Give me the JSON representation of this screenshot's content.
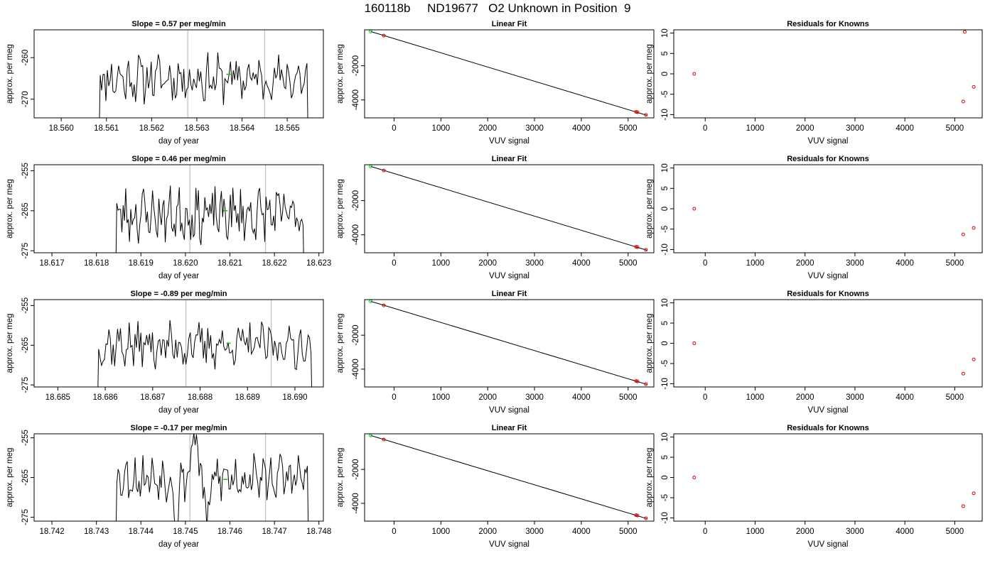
{
  "title": "160118b     ND19677   O2 Unknown in Position  9",
  "colors": {
    "line": "#000000",
    "green": "#00cc00",
    "red": "#d40000",
    "gridline": "#bfbfbf",
    "fit_line": "#000000"
  },
  "chart_data": [
    {
      "type": "line",
      "title": "Slope =  0.57  per meg/min",
      "xlabel": "day of year",
      "ylabel": "approx. per meg",
      "xlim": [
        18.5594,
        18.5658
      ],
      "ylim": [
        -274.5,
        -253.3
      ],
      "xticks": [
        18.56,
        18.561,
        18.562,
        18.563,
        18.564,
        18.565
      ],
      "xtick_labels": [
        "18.560",
        "18.561",
        "18.562",
        "18.563",
        "18.564",
        "18.565"
      ],
      "yticks": [
        -260,
        -270
      ],
      "ytick_labels": [
        "-260",
        "-270"
      ],
      "vlines": [
        18.5628,
        18.5645
      ],
      "marker": {
        "x": 18.5637,
        "y": -264
      },
      "series_meta": {
        "start": 18.5608,
        "end": 18.5655,
        "seed": 11,
        "base": -265,
        "amp": 4.5,
        "bumps": []
      }
    },
    {
      "type": "scatter",
      "title": "Linear Fit",
      "xlabel": "VUV signal",
      "ylabel": "approx. per meg",
      "xlim": [
        -630,
        5550
      ],
      "ylim": [
        -5050,
        100
      ],
      "xticks": [
        0,
        1000,
        2000,
        3000,
        4000,
        5000
      ],
      "xtick_labels": [
        "0",
        "1000",
        "2000",
        "3000",
        "4000",
        "5000"
      ],
      "yticks": [
        -2000,
        -4000
      ],
      "ytick_labels": [
        "-2000",
        "-4000"
      ],
      "line": {
        "x0": -500,
        "y0": 0,
        "x1": 5400,
        "y1": -4900
      },
      "green_points": [
        {
          "x": -500,
          "y": 0
        }
      ],
      "red_points": [
        {
          "x": -220,
          "y": -240
        },
        {
          "x": 5170,
          "y": -4700
        },
        {
          "x": 5200,
          "y": -4720
        },
        {
          "x": 5380,
          "y": -4880
        }
      ]
    },
    {
      "type": "scatter",
      "title": "Residuals for Knowns",
      "xlabel": "VUV signal",
      "ylabel": "approx. per meg",
      "xlim": [
        -630,
        5550
      ],
      "ylim": [
        -10.8,
        10.8
      ],
      "xticks": [
        0,
        1000,
        2000,
        3000,
        4000,
        5000
      ],
      "xtick_labels": [
        "0",
        "1000",
        "2000",
        "3000",
        "4000",
        "5000"
      ],
      "yticks": [
        10,
        5,
        0,
        -5,
        -10
      ],
      "ytick_labels": [
        "10",
        "5",
        "0",
        "-5",
        "-10"
      ],
      "red_points": [
        {
          "x": -220,
          "y": 0
        },
        {
          "x": 5170,
          "y": -6.8
        },
        {
          "x": 5200,
          "y": 10.3
        },
        {
          "x": 5380,
          "y": -3.2
        }
      ]
    },
    {
      "type": "line",
      "title": "Slope =  0.46  per meg/min",
      "xlabel": "day of year",
      "ylabel": "approx. per meg",
      "xlim": [
        18.6166,
        18.6231
      ],
      "ylim": [
        -275.5,
        -253.5
      ],
      "xticks": [
        18.617,
        18.618,
        18.619,
        18.62,
        18.621,
        18.622,
        18.623
      ],
      "xtick_labels": [
        "18.617",
        "18.618",
        "18.619",
        "18.620",
        "18.621",
        "18.622",
        "18.623"
      ],
      "yticks": [
        -255,
        -265,
        -275
      ],
      "ytick_labels": [
        "-255",
        "-265",
        "-275"
      ],
      "vlines": [
        18.6201,
        18.6218
      ],
      "marker": {
        "x": 18.6209,
        "y": -265
      },
      "series_meta": {
        "start": 18.6184,
        "end": 18.6227,
        "seed": 23,
        "base": -266,
        "amp": 5.5,
        "bumps": []
      }
    },
    {
      "type": "scatter",
      "title": "Linear Fit",
      "xlabel": "VUV signal",
      "ylabel": "approx. per meg",
      "xlim": [
        -630,
        5550
      ],
      "ylim": [
        -5050,
        100
      ],
      "xticks": [
        0,
        1000,
        2000,
        3000,
        4000,
        5000
      ],
      "xtick_labels": [
        "0",
        "1000",
        "2000",
        "3000",
        "4000",
        "5000"
      ],
      "yticks": [
        -2000,
        -4000
      ],
      "ytick_labels": [
        "-2000",
        "-4000"
      ],
      "line": {
        "x0": -500,
        "y0": 0,
        "x1": 5400,
        "y1": -4900
      },
      "green_points": [
        {
          "x": -500,
          "y": 0
        }
      ],
      "red_points": [
        {
          "x": -220,
          "y": -240
        },
        {
          "x": 5170,
          "y": -4700
        },
        {
          "x": 5200,
          "y": -4720
        },
        {
          "x": 5380,
          "y": -4880
        }
      ]
    },
    {
      "type": "scatter",
      "title": "Residuals for Knowns",
      "xlabel": "VUV signal",
      "ylabel": "approx. per meg",
      "xlim": [
        -630,
        5550
      ],
      "ylim": [
        -10.8,
        10.8
      ],
      "xticks": [
        0,
        1000,
        2000,
        3000,
        4000,
        5000
      ],
      "xtick_labels": [
        "0",
        "1000",
        "2000",
        "3000",
        "4000",
        "5000"
      ],
      "yticks": [
        10,
        5,
        0,
        -5,
        -10
      ],
      "ytick_labels": [
        "10",
        "5",
        "0",
        "-5",
        "-10"
      ],
      "red_points": [
        {
          "x": -220,
          "y": 0
        },
        {
          "x": 5170,
          "y": -6.3
        },
        {
          "x": 5380,
          "y": -4.7
        }
      ]
    },
    {
      "type": "line",
      "title": "Slope =  -0.89  per meg/min",
      "xlabel": "day of year",
      "ylabel": "approx. per meg",
      "xlim": [
        18.6845,
        18.6906
      ],
      "ylim": [
        -275.5,
        -253.5
      ],
      "xticks": [
        18.685,
        18.686,
        18.687,
        18.688,
        18.689,
        18.69
      ],
      "xtick_labels": [
        "18.685",
        "18.686",
        "18.687",
        "18.688",
        "18.689",
        "18.690"
      ],
      "yticks": [
        -255,
        -265,
        -275
      ],
      "ytick_labels": [
        "-255",
        "-265",
        "-275"
      ],
      "vlines": [
        18.6877,
        18.6895
      ],
      "marker": {
        "x": 18.6886,
        "y": -264.5
      },
      "series_meta": {
        "start": 18.6858,
        "end": 18.6904,
        "seed": 37,
        "base": -265,
        "amp": 4.5,
        "bumps": []
      }
    },
    {
      "type": "scatter",
      "title": "Linear Fit",
      "xlabel": "VUV signal",
      "ylabel": "approx. per meg",
      "xlim": [
        -630,
        5550
      ],
      "ylim": [
        -5050,
        100
      ],
      "xticks": [
        0,
        1000,
        2000,
        3000,
        4000,
        5000
      ],
      "xtick_labels": [
        "0",
        "1000",
        "2000",
        "3000",
        "4000",
        "5000"
      ],
      "yticks": [
        -2000,
        -4000
      ],
      "ytick_labels": [
        "-2000",
        "-4000"
      ],
      "line": {
        "x0": -500,
        "y0": 0,
        "x1": 5400,
        "y1": -4900
      },
      "green_points": [
        {
          "x": -500,
          "y": 0
        }
      ],
      "red_points": [
        {
          "x": -220,
          "y": -240
        },
        {
          "x": 5170,
          "y": -4700
        },
        {
          "x": 5200,
          "y": -4720
        },
        {
          "x": 5380,
          "y": -4880
        }
      ]
    },
    {
      "type": "scatter",
      "title": "Residuals for Knowns",
      "xlabel": "VUV signal",
      "ylabel": "approx. per meg",
      "xlim": [
        -630,
        5550
      ],
      "ylim": [
        -10.8,
        10.8
      ],
      "xticks": [
        0,
        1000,
        2000,
        3000,
        4000,
        5000
      ],
      "xtick_labels": [
        "0",
        "1000",
        "2000",
        "3000",
        "4000",
        "5000"
      ],
      "yticks": [
        10,
        5,
        0,
        -5,
        -10
      ],
      "ytick_labels": [
        "10",
        "5",
        "0",
        "-5",
        "-10"
      ],
      "red_points": [
        {
          "x": -220,
          "y": 0
        },
        {
          "x": 5170,
          "y": -7.5
        },
        {
          "x": 5380,
          "y": -4.0
        }
      ]
    },
    {
      "type": "line",
      "title": "Slope =  -0.17  per meg/min",
      "xlabel": "day of year",
      "ylabel": "approx. per meg",
      "xlim": [
        18.7416,
        18.7481
      ],
      "ylim": [
        -276,
        -254
      ],
      "xticks": [
        18.742,
        18.743,
        18.744,
        18.745,
        18.746,
        18.747,
        18.748
      ],
      "xtick_labels": [
        "18.742",
        "18.743",
        "18.744",
        "18.745",
        "18.746",
        "18.747",
        "18.748"
      ],
      "yticks": [
        -255,
        -265,
        -275
      ],
      "ytick_labels": [
        "-255",
        "-265",
        "-275"
      ],
      "vlines": [
        18.7451,
        18.7468
      ],
      "marker": {
        "x": 18.7459,
        "y": -265.5
      },
      "series_meta": {
        "start": 18.7434,
        "end": 18.7478,
        "seed": 53,
        "base": -265,
        "amp": 4.5,
        "bumps": [
          {
            "x": 18.7448,
            "w": 5e-05,
            "h": -16
          },
          {
            "x": 18.7452,
            "w": 7e-05,
            "h": 14
          },
          {
            "x": 18.7455,
            "w": 6e-05,
            "h": -13
          }
        ]
      }
    },
    {
      "type": "scatter",
      "title": "Linear Fit",
      "xlabel": "VUV signal",
      "ylabel": "approx. per meg",
      "xlim": [
        -630,
        5550
      ],
      "ylim": [
        -5050,
        100
      ],
      "xticks": [
        0,
        1000,
        2000,
        3000,
        4000,
        5000
      ],
      "xtick_labels": [
        "0",
        "1000",
        "2000",
        "3000",
        "4000",
        "5000"
      ],
      "yticks": [
        -2000,
        -4000
      ],
      "ytick_labels": [
        "-2000",
        "-4000"
      ],
      "line": {
        "x0": -500,
        "y0": 0,
        "x1": 5400,
        "y1": -4900
      },
      "green_points": [
        {
          "x": -500,
          "y": 0
        }
      ],
      "red_points": [
        {
          "x": -220,
          "y": -240
        },
        {
          "x": 5170,
          "y": -4700
        },
        {
          "x": 5200,
          "y": -4720
        },
        {
          "x": 5380,
          "y": -4880
        }
      ]
    },
    {
      "type": "scatter",
      "title": "Residuals for Knowns",
      "xlabel": "VUV signal",
      "ylabel": "approx. per meg",
      "xlim": [
        -630,
        5550
      ],
      "ylim": [
        -10.8,
        10.8
      ],
      "xticks": [
        0,
        1000,
        2000,
        3000,
        4000,
        5000
      ],
      "xtick_labels": [
        "0",
        "1000",
        "2000",
        "3000",
        "4000",
        "5000"
      ],
      "yticks": [
        10,
        5,
        0,
        -5,
        -10
      ],
      "ytick_labels": [
        "10",
        "5",
        "0",
        "-5",
        "-10"
      ],
      "red_points": [
        {
          "x": -220,
          "y": 0
        },
        {
          "x": 5170,
          "y": -7.1
        },
        {
          "x": 5380,
          "y": -3.9
        }
      ]
    }
  ]
}
